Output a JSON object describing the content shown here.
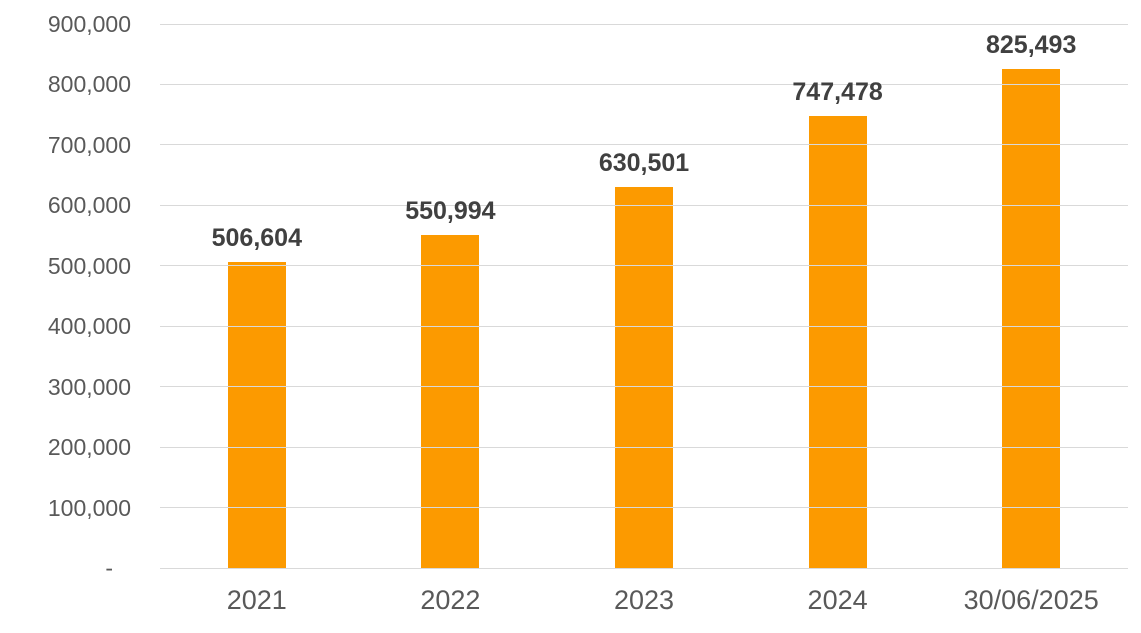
{
  "chart_data": {
    "type": "bar",
    "title": "",
    "xlabel": "",
    "ylabel": "",
    "categories": [
      "2021",
      "2022",
      "2023",
      "2024",
      "30/06/2025"
    ],
    "values": [
      506604,
      550994,
      630501,
      747478,
      825493
    ],
    "value_labels": [
      "506,604",
      "550,994",
      "630,501",
      "747,478",
      "825,493"
    ],
    "ylim": [
      0,
      900000
    ],
    "yticks": [
      {
        "value": 0,
        "label": "-"
      },
      {
        "value": 100000,
        "label": "100,000"
      },
      {
        "value": 200000,
        "label": "200,000"
      },
      {
        "value": 300000,
        "label": "300,000"
      },
      {
        "value": 400000,
        "label": "400,000"
      },
      {
        "value": 500000,
        "label": "500,000"
      },
      {
        "value": 600000,
        "label": "600,000"
      },
      {
        "value": 700000,
        "label": "700,000"
      },
      {
        "value": 800000,
        "label": "800,000"
      },
      {
        "value": 900000,
        "label": "900,000"
      }
    ],
    "grid": true,
    "legend": false,
    "colors": {
      "bar": "#FC9A00",
      "gridline": "#D9D9D9",
      "axis_label": "#595959",
      "value_label": "#404040",
      "background": "#FFFFFF"
    }
  }
}
